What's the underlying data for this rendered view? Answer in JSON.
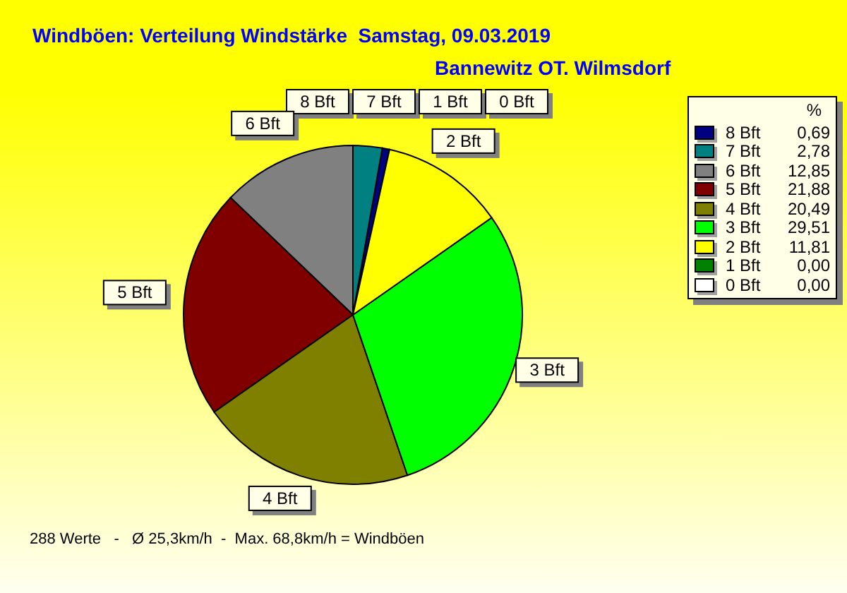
{
  "chart_data": {
    "type": "pie",
    "title": "Windböen: Verteilung Windstärke  Samstag, 09.03.2019",
    "subtitle": "Bannewitz OT. Wilmsdorf",
    "legend_title": "%",
    "categories": [
      "8 Bft",
      "7 Bft",
      "6 Bft",
      "5 Bft",
      "4 Bft",
      "3 Bft",
      "2 Bft",
      "1 Bft",
      "0 Bft"
    ],
    "values": [
      0.69,
      2.78,
      12.85,
      21.88,
      20.49,
      29.51,
      11.81,
      0,
      0
    ],
    "value_labels": [
      "0,69",
      "2,78",
      "12,85",
      "21,88",
      "20,49",
      "29,51",
      "11,81",
      "0,00",
      "0,00"
    ],
    "colors": [
      "#000080",
      "#008080",
      "#808080",
      "#800000",
      "#808000",
      "#00ff00",
      "#ffff00",
      "#008000",
      "#ffffff"
    ],
    "legend": "right",
    "annotations": [
      "288 Werte   -   Ø 25,3km/h  -  Max. 68,8km/h = Windböen"
    ]
  }
}
